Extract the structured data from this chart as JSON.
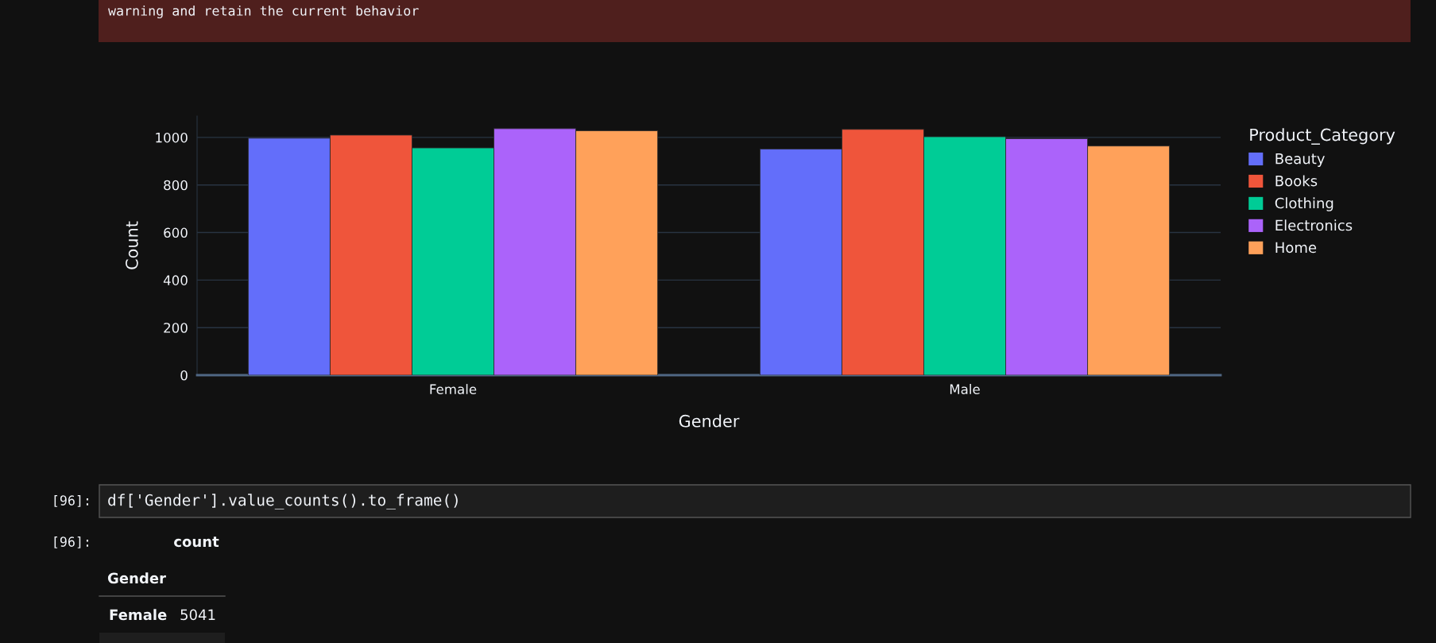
{
  "chart_data": {
    "type": "bar",
    "xlabel": "Gender",
    "ylabel": "Count",
    "legend_title": "Product_Category",
    "categories": [
      "Female",
      "Male"
    ],
    "series": [
      {
        "name": "Beauty",
        "color": "#636efa",
        "values": [
          997,
          951
        ]
      },
      {
        "name": "Books",
        "color": "#ef553b",
        "values": [
          1010,
          1034
        ]
      },
      {
        "name": "Clothing",
        "color": "#00cc96",
        "values": [
          956,
          1003
        ]
      },
      {
        "name": "Electronics",
        "color": "#ab63fa",
        "values": [
          1037,
          995
        ]
      },
      {
        "name": "Home",
        "color": "#ffa15a",
        "values": [
          1028,
          964
        ]
      }
    ],
    "ylim": [
      0,
      1090
    ],
    "yticks": [
      0,
      200,
      400,
      600,
      800,
      1000
    ],
    "grid": "y",
    "legend": "top right",
    "annotations": [
      "warning and retain the current behavior",
      "[96]:",
      "df['Gender'].value_counts().to_frame()",
      "[96]:",
      "count",
      "Gender",
      "Female",
      "5041"
    ]
  }
}
